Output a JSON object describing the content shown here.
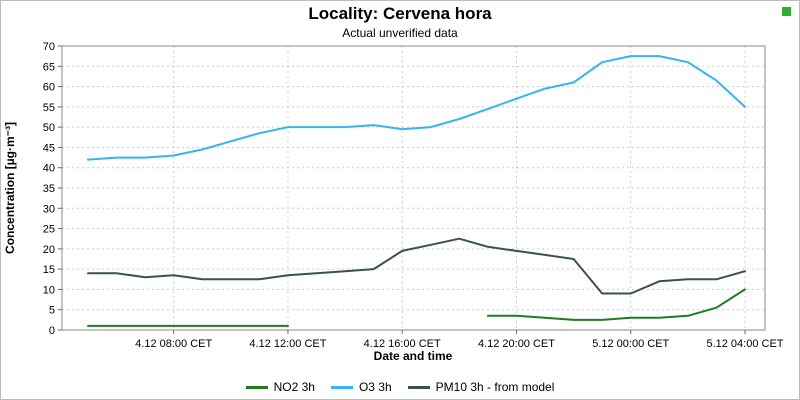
{
  "window": {
    "status_indicator_color": "#2fae2f"
  },
  "chart_data": {
    "type": "line",
    "title": "Locality: Cervena hora",
    "subtitle": "Actual unverified data",
    "xlabel": "Date and time",
    "ylabel": "Concentration [µg·m⁻³]",
    "ylim": [
      0,
      70
    ],
    "ytick_step": 5,
    "grid": true,
    "grid_color": "#cccccc",
    "axis_color": "#888888",
    "legend_position": "bottom",
    "x_times": [
      "4.12 05:00",
      "4.12 06:00",
      "4.12 07:00",
      "4.12 08:00",
      "4.12 09:00",
      "4.12 10:00",
      "4.12 11:00",
      "4.12 12:00",
      "4.12 13:00",
      "4.12 14:00",
      "4.12 15:00",
      "4.12 16:00",
      "4.12 17:00",
      "4.12 18:00",
      "4.12 19:00",
      "4.12 20:00",
      "4.12 21:00",
      "4.12 22:00",
      "4.12 23:00",
      "5.12 00:00",
      "5.12 01:00",
      "5.12 02:00",
      "5.12 03:00",
      "5.12 04:00"
    ],
    "xticks": [
      {
        "index": 3,
        "label": "4.12 08:00 CET"
      },
      {
        "index": 7,
        "label": "4.12 12:00 CET"
      },
      {
        "index": 11,
        "label": "4.12 16:00 CET"
      },
      {
        "index": 15,
        "label": "4.12 20:00 CET"
      },
      {
        "index": 19,
        "label": "5.12 00:00 CET"
      },
      {
        "index": 23,
        "label": "5.12 04:00 CET"
      }
    ],
    "series": [
      {
        "name": "NO2 3h",
        "color": "#1e7d1e",
        "values": [
          1,
          1,
          1,
          1,
          1,
          1,
          1,
          1,
          null,
          null,
          null,
          null,
          null,
          null,
          3.5,
          3.5,
          3,
          2.5,
          2.5,
          3,
          3,
          3.5,
          5.5,
          10
        ]
      },
      {
        "name": "O3 3h",
        "color": "#35b6ea",
        "values": [
          42,
          42.5,
          42.5,
          43,
          44.5,
          46.5,
          48.5,
          50,
          50,
          50,
          50.5,
          49.5,
          50,
          52,
          54.5,
          57,
          59.5,
          61,
          66,
          67.5,
          67.5,
          66,
          61.5,
          55
        ]
      },
      {
        "name": "PM10 3h - from model",
        "color": "#37505a",
        "values": [
          14,
          14,
          13,
          13.5,
          12.5,
          12.5,
          12.5,
          13.5,
          14,
          14.5,
          15,
          19.5,
          21,
          22.5,
          20.5,
          19.5,
          18.5,
          17.5,
          9,
          9,
          12,
          12.5,
          12.5,
          14.5
        ]
      }
    ]
  }
}
